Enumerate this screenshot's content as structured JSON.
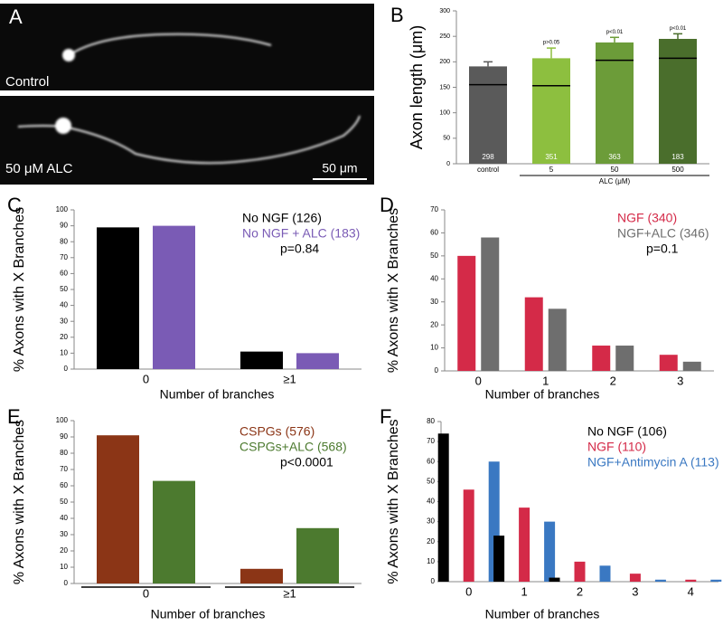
{
  "panel_a": {
    "label": "A",
    "captions": [
      "Control",
      "50 μM ALC"
    ],
    "scale_bar": "50 μm"
  },
  "chart_data": [
    {
      "type": "bar",
      "panel": "B",
      "ylabel": "Axon length (μm)",
      "categories": [
        "control",
        "5",
        "50",
        "500"
      ],
      "values": [
        191,
        207,
        238,
        245
      ],
      "errors": [
        9,
        20,
        10,
        10
      ],
      "medians": [
        155,
        153,
        203,
        207
      ],
      "colors": [
        "#5a5a5a",
        "#8dbf3f",
        "#6c9c39",
        "#4a6e2c"
      ],
      "n_labels": [
        "298",
        "351",
        "363",
        "183"
      ],
      "annotations": [
        null,
        "p>0.05",
        "p<0.01",
        "p<0.01"
      ],
      "group_label": "ALC (μM)",
      "ylim": [
        0,
        300
      ],
      "yticks": [
        0,
        50,
        100,
        150,
        200,
        250,
        300
      ]
    },
    {
      "type": "bar",
      "panel": "C",
      "ylabel": "% Axons with X Branches",
      "xlabel": "Number of branches",
      "categories": [
        "0",
        "≥1"
      ],
      "series": [
        {
          "name": "No NGF (126)",
          "color": "#000000",
          "values": [
            89,
            11
          ]
        },
        {
          "name": "No NGF + ALC (183)",
          "color": "#7a5bb5",
          "values": [
            90,
            10
          ]
        }
      ],
      "annotation": "p=0.84",
      "ylim": [
        0,
        100
      ],
      "yticks": [
        0,
        10,
        20,
        30,
        40,
        50,
        60,
        70,
        80,
        90,
        100
      ]
    },
    {
      "type": "bar",
      "panel": "D",
      "ylabel": "% Axons with X Branches",
      "xlabel": "Number of branches",
      "categories": [
        "0",
        "1",
        "2",
        "3"
      ],
      "series": [
        {
          "name": "NGF (340)",
          "color": "#d42a48",
          "values": [
            50,
            32,
            11,
            7
          ]
        },
        {
          "name": "NGF+ALC (346)",
          "color": "#6e6e6e",
          "values": [
            58,
            27,
            11,
            4
          ]
        }
      ],
      "annotation": "p=0.1",
      "ylim": [
        0,
        70
      ],
      "yticks": [
        0,
        10,
        20,
        30,
        40,
        50,
        60,
        70
      ]
    },
    {
      "type": "bar",
      "panel": "E",
      "ylabel": "% Axons with X Branches",
      "xlabel": "Number of branches",
      "categories": [
        "0",
        "≥1"
      ],
      "series": [
        {
          "name": "CSPGs (576)",
          "color": "#8b3516",
          "values": [
            91,
            9
          ]
        },
        {
          "name": "CSPGs+ALC (568)",
          "color": "#4c7a2f",
          "values": [
            63,
            34
          ]
        }
      ],
      "annotation": "p<0.0001",
      "ylim": [
        0,
        100
      ],
      "yticks": [
        0,
        10,
        20,
        30,
        40,
        50,
        60,
        70,
        80,
        90,
        100
      ]
    },
    {
      "type": "bar",
      "panel": "F",
      "ylabel": "% Axons with X Branches",
      "xlabel": "Number of branches",
      "categories": [
        "0",
        "1",
        "2",
        "3",
        "4"
      ],
      "series": [
        {
          "name": "No NGF (106)",
          "color": "#000000",
          "values": [
            74,
            23,
            2,
            0,
            0
          ]
        },
        {
          "name": "NGF (110)",
          "color": "#d42a48",
          "values": [
            46,
            37,
            10,
            4,
            1
          ]
        },
        {
          "name": "NGF+Antimycin A (113)",
          "color": "#3a78c2",
          "values": [
            60,
            30,
            8,
            1,
            1
          ]
        }
      ],
      "ylim": [
        0,
        80
      ],
      "yticks": [
        0,
        10,
        20,
        30,
        40,
        50,
        60,
        70,
        80
      ]
    }
  ]
}
